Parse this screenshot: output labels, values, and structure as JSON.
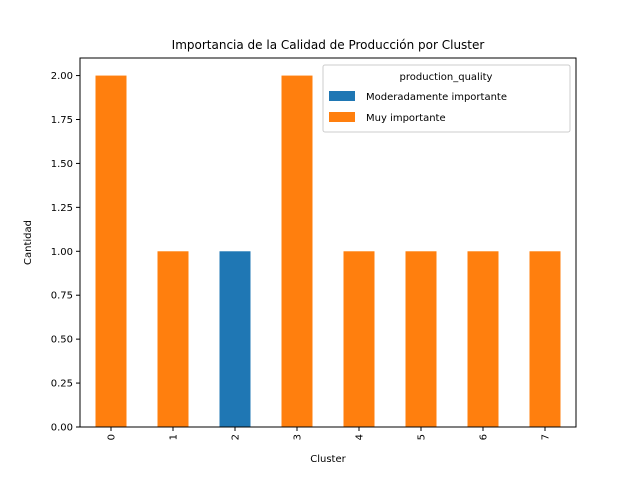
{
  "chart_data": {
    "type": "bar",
    "stacked": true,
    "title": "Importancia de la Calidad de Producción por Cluster",
    "xlabel": "Cluster",
    "ylabel": "Cantidad",
    "categories": [
      "0",
      "1",
      "2",
      "3",
      "4",
      "5",
      "6",
      "7"
    ],
    "series": [
      {
        "name": "Moderadamente importante",
        "values": [
          0,
          0,
          1,
          0,
          0,
          0,
          0,
          0
        ],
        "color": "#1f77b4"
      },
      {
        "name": "Muy importante",
        "values": [
          2,
          1,
          0,
          2,
          1,
          1,
          1,
          1
        ],
        "color": "#ff7f0e"
      }
    ],
    "ylim": [
      0,
      2.1
    ],
    "yticks": [
      "0.00",
      "0.25",
      "0.50",
      "0.75",
      "1.00",
      "1.25",
      "1.50",
      "1.75",
      "2.00"
    ],
    "legend": {
      "title": "production_quality",
      "placement": "top-right"
    },
    "grid": false
  }
}
